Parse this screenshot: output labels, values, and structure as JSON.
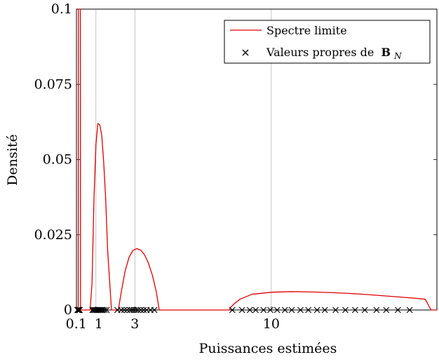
{
  "chart_data": {
    "type": "line",
    "xlabel": "Puissances estimées",
    "ylabel": "Densité",
    "xlim": [
      0,
      18.5
    ],
    "ylim": [
      0,
      0.1
    ],
    "x_ticks": [
      {
        "value": 0.1,
        "label": "0.1"
      },
      {
        "value": 1,
        "label": "1"
      },
      {
        "value": 3,
        "label": "3"
      },
      {
        "value": 10,
        "label": "10"
      }
    ],
    "y_ticks": [
      {
        "value": 0,
        "label": "0"
      },
      {
        "value": 0.025,
        "label": "0.025"
      },
      {
        "value": 0.05,
        "label": "0.05"
      },
      {
        "value": 0.075,
        "label": "0.075"
      },
      {
        "value": 0.1,
        "label": "0.1"
      }
    ],
    "grid": "vertical lines at x ticks",
    "legend_position": "top-right",
    "series": [
      {
        "name": "Spectre limite",
        "kind": "line",
        "color": "#e00000",
        "x": [
          0,
          0.05,
          0.09,
          0.1,
          0.11,
          0.15,
          0.2,
          0.21,
          0.22,
          0.25,
          0.3,
          0.37,
          0.44,
          0.52,
          0.6,
          0.7,
          0.8,
          0.9,
          1.0,
          1.1,
          1.2,
          1.3,
          1.4,
          1.5,
          1.6,
          1.8,
          1.95,
          2.0,
          2.05,
          2.15,
          2.3,
          2.5,
          2.7,
          2.9,
          3.1,
          3.3,
          3.5,
          3.7,
          3.9,
          4.1,
          4.25,
          4.3,
          4.5,
          5,
          6,
          7,
          7.85,
          7.9,
          8.1,
          8.4,
          9,
          10,
          11,
          12,
          13,
          14,
          15,
          16,
          17,
          17.9,
          18.2,
          18.5
        ],
        "y": [
          0,
          0,
          0,
          0.1,
          0.1,
          0.1,
          0.1,
          0,
          0,
          0,
          0,
          0,
          0,
          0,
          0,
          0,
          0.009,
          0.037,
          0.055,
          0.062,
          0.0615,
          0.058,
          0.049,
          0.037,
          0.02,
          0,
          0,
          0,
          0,
          0,
          0.006,
          0.013,
          0.0175,
          0.0198,
          0.0204,
          0.0199,
          0.0183,
          0.0155,
          0.0115,
          0.006,
          0,
          0,
          0,
          0,
          0,
          0,
          0,
          0.0008,
          0.0021,
          0.0036,
          0.0052,
          0.0059,
          0.0061,
          0.006,
          0.0058,
          0.0055,
          0.0051,
          0.0046,
          0.0041,
          0.0036,
          0,
          0
        ]
      },
      {
        "name": "Valeurs propres de B_N",
        "kind": "scatter",
        "marker": "x",
        "color": "#000000",
        "x": [
          0.05,
          0.07,
          0.09,
          0.11,
          0.13,
          0.15,
          0.17,
          0.82,
          0.88,
          0.94,
          1.0,
          1.06,
          1.12,
          1.18,
          1.24,
          1.3,
          1.36,
          1.45,
          1.55,
          2.1,
          2.3,
          2.45,
          2.6,
          2.75,
          2.85,
          2.95,
          3.05,
          3.15,
          3.3,
          3.45,
          3.6,
          3.8,
          4.0,
          8.0,
          8.5,
          8.9,
          9.2,
          9.6,
          9.95,
          10.3,
          10.7,
          11.05,
          11.5,
          11.9,
          12.35,
          12.75,
          13.3,
          13.8,
          14.3,
          14.8,
          15.4,
          15.9,
          16.5,
          17.1
        ]
      }
    ]
  },
  "legend": {
    "line_label": "Spectre limite",
    "marker_label_prefix": "Valeurs propres de",
    "marker_label_math_bold": "B",
    "marker_label_math_sub": "N"
  }
}
